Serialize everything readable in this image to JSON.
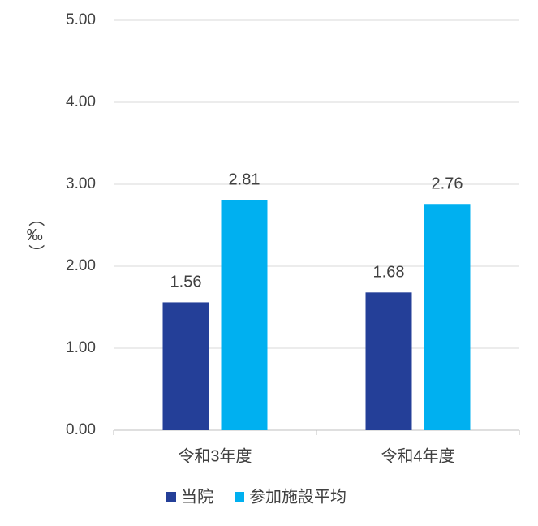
{
  "chart_data": {
    "type": "bar",
    "y_label": "（‰）",
    "categories": [
      "令和3年度",
      "令和4年度"
    ],
    "series": [
      {
        "name": "当院",
        "color": "#243f98",
        "values": [
          1.56,
          1.68
        ]
      },
      {
        "name": "参加施設平均",
        "color": "#00b0f0",
        "values": [
          2.81,
          2.76
        ]
      }
    ],
    "ylim": [
      0,
      5
    ],
    "yticks": [
      {
        "value": 0,
        "label": "0.00"
      },
      {
        "value": 1,
        "label": "1.00"
      },
      {
        "value": 2,
        "label": "2.00"
      },
      {
        "value": 3,
        "label": "3.00"
      },
      {
        "value": 4,
        "label": "4.00"
      },
      {
        "value": 5,
        "label": "5.00"
      }
    ],
    "grid": true,
    "legend": "bottom"
  }
}
